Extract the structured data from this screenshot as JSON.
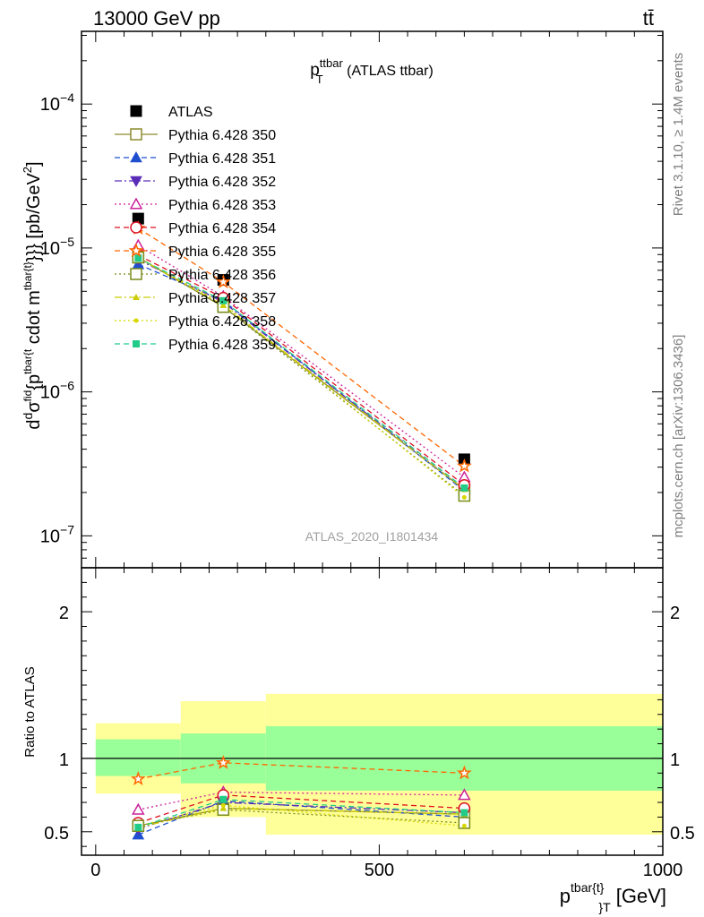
{
  "header": {
    "left": "13000 GeV pp",
    "right": "tt̄"
  },
  "side_text": {
    "rivet": "Rivet 3.1.10, ≥ 1.4M events",
    "mcplots": "mcplots.cern.ch [arXiv:1306.3436]"
  },
  "watermark": "ATLAS_2020_I1801434",
  "colors": {
    "band_inner": "#99ff99",
    "band_outer": "#ffff99"
  },
  "chart_data": [
    {
      "type": "line",
      "title": "p_T^ttbar (ATLAS ttbar)",
      "title_main": "p",
      "title_sup": "ttbar",
      "title_sub": "T",
      "title_rest": " (ATLAS ttbar)",
      "ylabel": "d²σ^fid / d² {p^tbar{t}} cdot m^tbar{t}}} [pb/GeV²]",
      "ylabel_parts": {
        "d1": "d",
        "sigma": "σ",
        "fid": "fid",
        "d2": "d",
        "p": "{p",
        "sup1": "tbar{t",
        "rest": "cdot m",
        "sup2": "tbar{t}",
        "rest2": "}}} [pb/GeV",
        "sq": "2",
        "close": "]"
      },
      "yscale": "log",
      "ylim": [
        6e-08,
        0.00032
      ],
      "xlim": [
        -25,
        1000
      ],
      "y_ticks": [
        {
          "v": 1e-07,
          "base": "10",
          "exp": "−7"
        },
        {
          "v": 1e-06,
          "base": "10",
          "exp": "−6"
        },
        {
          "v": 1e-05,
          "base": "10",
          "exp": "−5"
        },
        {
          "v": 0.0001,
          "base": "10",
          "exp": "−4"
        }
      ],
      "legend_position": "top-left",
      "x": [
        75,
        225,
        650
      ],
      "series": [
        {
          "name": "ATLAS",
          "color": "#000000",
          "marker": "square-filled",
          "dash": "none",
          "values": [
            1.6e-05,
            6e-06,
            3.4e-07
          ]
        },
        {
          "name": "Pythia 6.428 350",
          "color": "#8c8c2e",
          "marker": "square-open",
          "dash": "solid",
          "values": [
            8.6e-06,
            3.9e-06,
            2.1e-07
          ]
        },
        {
          "name": "Pythia 6.428 351",
          "color": "#1f4fcf",
          "marker": "triangle-up-filled",
          "dash": "dashed",
          "values": [
            7.7e-06,
            4.3e-06,
            2.05e-07
          ]
        },
        {
          "name": "Pythia 6.428 352",
          "color": "#5a2db8",
          "marker": "triangle-down-filled",
          "dash": "dashdot",
          "values": [
            8.3e-06,
            4.2e-06,
            2.1e-07
          ]
        },
        {
          "name": "Pythia 6.428 353",
          "color": "#cc2299",
          "marker": "triangle-up-open",
          "dash": "dotted",
          "values": [
            1.04e-05,
            4.6e-06,
            2.55e-07
          ]
        },
        {
          "name": "Pythia 6.428 354",
          "color": "#dd1122",
          "marker": "circle-open",
          "dash": "dashed",
          "values": [
            8.9e-06,
            4.5e-06,
            2.25e-07
          ]
        },
        {
          "name": "Pythia 6.428 355",
          "color": "#ff6600",
          "marker": "star-open",
          "dash": "dashed",
          "values": [
            1.37e-05,
            5.8e-06,
            3.05e-07
          ]
        },
        {
          "name": "Pythia 6.428 356",
          "color": "#7a8c1a",
          "marker": "square-open",
          "dash": "dotted",
          "values": [
            8.6e-06,
            3.9e-06,
            1.9e-07
          ]
        },
        {
          "name": "Pythia 6.428 357",
          "color": "#cccc00",
          "marker": "tri-small",
          "dash": "dashdot",
          "values": [
            8.5e-06,
            4e-06,
            2.1e-07
          ]
        },
        {
          "name": "Pythia 6.428 358",
          "color": "#d8d800",
          "marker": "dot-small",
          "dash": "dotted",
          "values": [
            8.6e-06,
            4.1e-06,
            1.85e-07
          ]
        },
        {
          "name": "Pythia 6.428 359",
          "color": "#22cc88",
          "marker": "square-small-filled",
          "dash": "dashed",
          "values": [
            8.5e-06,
            4.3e-06,
            2.15e-07
          ]
        }
      ]
    },
    {
      "type": "line",
      "title": "",
      "xlabel": "p^tbar{t}}_T [GeV]",
      "xlabel_parts": {
        "p": "p",
        "sup": "tbar{t}",
        "sub": "}",
        "subT": "T",
        "rest": " [GeV]"
      },
      "ylabel": "Ratio to ATLAS",
      "yscale": "linear",
      "ylim": [
        0.34,
        2.3
      ],
      "xlim": [
        -25,
        1000
      ],
      "x_ticks": [
        0,
        500,
        1000
      ],
      "y_ticks": [
        0.5,
        1,
        2
      ],
      "bands": [
        {
          "x0": 0,
          "x1": 150,
          "inner": [
            0.88,
            1.13
          ],
          "outer": [
            0.76,
            1.24
          ]
        },
        {
          "x0": 150,
          "x1": 300,
          "inner": [
            0.83,
            1.17
          ],
          "outer": [
            0.6,
            1.39
          ]
        },
        {
          "x0": 300,
          "x1": 1000,
          "inner": [
            0.78,
            1.22
          ],
          "outer": [
            0.48,
            1.44
          ]
        }
      ],
      "x": [
        75,
        225,
        650
      ],
      "series": [
        {
          "name": "Pythia 6.428 350",
          "values": [
            0.54,
            0.66,
            0.62
          ]
        },
        {
          "name": "Pythia 6.428 351",
          "values": [
            0.48,
            0.71,
            0.6
          ]
        },
        {
          "name": "Pythia 6.428 352",
          "values": [
            0.52,
            0.7,
            0.63
          ]
        },
        {
          "name": "Pythia 6.428 353",
          "values": [
            0.65,
            0.77,
            0.75
          ]
        },
        {
          "name": "Pythia 6.428 354",
          "values": [
            0.56,
            0.75,
            0.66
          ]
        },
        {
          "name": "Pythia 6.428 355",
          "values": [
            0.86,
            0.97,
            0.9
          ]
        },
        {
          "name": "Pythia 6.428 356",
          "values": [
            0.54,
            0.65,
            0.56
          ]
        },
        {
          "name": "Pythia 6.428 357",
          "values": [
            0.53,
            0.66,
            0.62
          ]
        },
        {
          "name": "Pythia 6.428 358",
          "values": [
            0.54,
            0.68,
            0.54
          ]
        },
        {
          "name": "Pythia 6.428 359",
          "values": [
            0.53,
            0.72,
            0.63
          ]
        }
      ]
    }
  ]
}
